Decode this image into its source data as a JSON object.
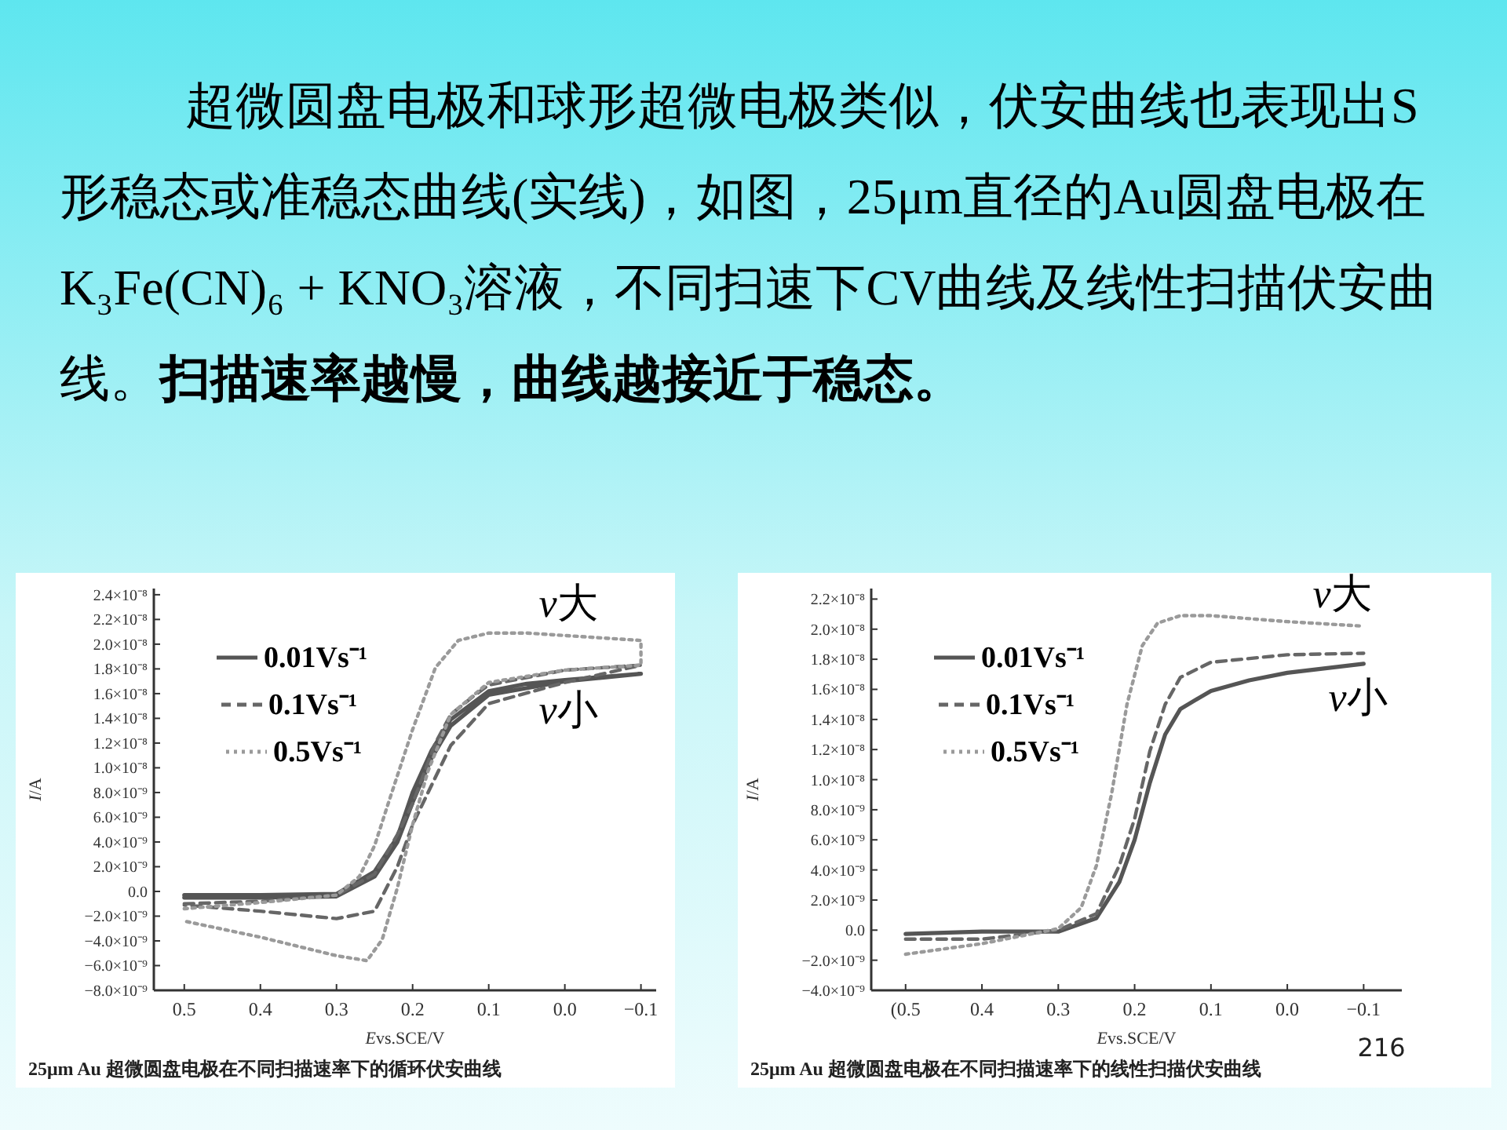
{
  "chart_data": [
    {
      "type": "line",
      "title": "超微圆盘电极和球形超微电极类似，伏安曲线也表现出S形稳态或准稳态曲线(实线)，如图，25μm直径的Au圆盘电极在K₃Fe(CN)₆ + KNO₃溶液，不同扫速下CV曲线及线性扫描伏安曲线。",
      "subtitle": "扫描速率越慢，曲线越接近于稳态。",
      "xlabel": "Evs.SCE/V",
      "ylabel": "I/A",
      "legend": "top left",
      "xlim": [
        0.54,
        -0.12
      ],
      "ylim": [
        -8e-09,
        2.45e-08
      ],
      "xticks": [
        {
          "value": 0.5,
          "label": "0.5"
        },
        {
          "value": 0.4,
          "label": "0.4"
        },
        {
          "value": 0.3,
          "label": "0.3"
        },
        {
          "value": 0.2,
          "label": "0.2"
        },
        {
          "value": 0.1,
          "label": "0.1"
        },
        {
          "value": 0.0,
          "label": "0.0"
        },
        {
          "value": -0.1,
          "label": "−0.1"
        }
      ],
      "yticks": [
        {
          "value": 2.4e-08,
          "label": "2.4×10⁻⁸"
        },
        {
          "value": 2.2e-08,
          "label": "2.2×10⁻⁸"
        },
        {
          "value": 2e-08,
          "label": "2.0×10⁻⁸"
        },
        {
          "value": 1.8e-08,
          "label": "1.8×10⁻⁸"
        },
        {
          "value": 1.6e-08,
          "label": "1.6×10⁻⁸"
        },
        {
          "value": 1.4e-08,
          "label": "1.4×10⁻⁸"
        },
        {
          "value": 1.2e-08,
          "label": "1.2×10⁻⁸"
        },
        {
          "value": 1e-08,
          "label": "1.0×10⁻⁸"
        },
        {
          "value": 8e-09,
          "label": "8.0×10⁻⁹"
        },
        {
          "value": 6e-09,
          "label": "6.0×10⁻⁹"
        },
        {
          "value": 4e-09,
          "label": "4.0×10⁻⁹"
        },
        {
          "value": 2e-09,
          "label": "2.0×10⁻⁹"
        },
        {
          "value": 0.0,
          "label": "0.0"
        },
        {
          "value": -2e-09,
          "label": "−2.0×10⁻⁹"
        },
        {
          "value": -4e-09,
          "label": "−4.0×10⁻⁹"
        },
        {
          "value": -6e-09,
          "label": "−6.0×10⁻⁹"
        },
        {
          "value": -8e-09,
          "label": "−8.0×10⁻⁹"
        }
      ],
      "series": [
        {
          "name": "0.01Vs⁻¹",
          "color": "#555555",
          "line_style": "solid",
          "x": [
            0.5,
            0.4,
            0.3,
            0.25,
            0.22,
            0.2,
            0.175,
            0.15,
            0.1,
            0.05,
            0.0,
            -0.1,
            0.0,
            0.1,
            0.15,
            0.175,
            0.2,
            0.22,
            0.25,
            0.3,
            0.4,
            0.5
          ],
          "values": [
            -3e-10,
            -3e-10,
            -2e-10,
            1.6e-09,
            4.4e-09,
            8e-09,
            1.14e-08,
            1.39e-08,
            1.62e-08,
            1.68e-08,
            1.71e-08,
            1.76e-08,
            1.7e-08,
            1.59e-08,
            1.34e-08,
            1.08e-08,
            7.2e-09,
            4e-09,
            1.2e-09,
            -4e-10,
            -5e-10,
            -5e-10
          ]
        },
        {
          "name": "0.1Vs⁻¹",
          "color": "#666666",
          "line_style": "dashed",
          "x": [
            0.5,
            0.4,
            0.3,
            0.25,
            0.22,
            0.2,
            0.17,
            0.15,
            0.12,
            0.1,
            0.0,
            -0.1,
            0.0,
            0.1,
            0.15,
            0.2,
            0.22,
            0.25,
            0.3,
            0.4,
            0.5
          ],
          "values": [
            -1e-09,
            -8e-10,
            -3e-10,
            1.4e-09,
            4.6e-09,
            7.1e-09,
            1.2e-08,
            1.43e-08,
            1.58e-08,
            1.67e-08,
            1.79e-08,
            1.83e-08,
            1.69e-08,
            1.52e-08,
            1.18e-08,
            5.4e-09,
            2e-09,
            -1.6e-09,
            -2.2e-09,
            -1.6e-09,
            -1.1e-09
          ]
        },
        {
          "name": "0.5Vs⁻¹",
          "color": "#9a9a9a",
          "line_style": "dotted",
          "x": [
            0.5,
            0.4,
            0.3,
            0.27,
            0.25,
            0.23,
            0.2,
            0.17,
            0.14,
            0.1,
            0.05,
            0.0,
            -0.1,
            -0.1,
            0.0,
            0.1,
            0.15,
            0.18,
            0.2,
            0.22,
            0.24,
            0.26,
            0.3,
            0.4,
            0.5
          ],
          "values": [
            -1.4e-09,
            -9e-10,
            -3e-10,
            1.2e-09,
            3.7e-09,
            7.5e-09,
            1.31e-08,
            1.81e-08,
            2.03e-08,
            2.09e-08,
            2.09e-08,
            2.07e-08,
            2.03e-08,
            1.83e-08,
            1.79e-08,
            1.69e-08,
            1.43e-08,
            9.7e-09,
            5.4e-09,
            3e-10,
            -3.9e-09,
            -5.6e-09,
            -5.2e-09,
            -3.7e-09,
            -2.4e-09
          ]
        }
      ],
      "annotations": [
        "v大",
        "v小",
        "25μm Au 超微圆盘电极在不同扫描速率下的循环伏安曲线"
      ]
    },
    {
      "type": "line",
      "xlabel": "Evs.SCE/V",
      "ylabel": "I/A",
      "legend": "top left",
      "xlim": [
        0.545,
        -0.15
      ],
      "ylim": [
        -4e-09,
        2.27e-08
      ],
      "xticks": [
        {
          "value": 0.5,
          "label": "(0.5"
        },
        {
          "value": 0.4,
          "label": "0.4"
        },
        {
          "value": 0.3,
          "label": "0.3"
        },
        {
          "value": 0.2,
          "label": "0.2"
        },
        {
          "value": 0.1,
          "label": "0.1"
        },
        {
          "value": 0.0,
          "label": "0.0"
        },
        {
          "value": -0.1,
          "label": "−0.1"
        }
      ],
      "yticks": [
        {
          "value": 2.2e-08,
          "label": "2.2×10⁻⁸"
        },
        {
          "value": 2e-08,
          "label": "2.0×10⁻⁸"
        },
        {
          "value": 1.8e-08,
          "label": "1.8×10⁻⁸"
        },
        {
          "value": 1.6e-08,
          "label": "1.6×10⁻⁸"
        },
        {
          "value": 1.4e-08,
          "label": "1.4×10⁻⁸"
        },
        {
          "value": 1.2e-08,
          "label": "1.2×10⁻⁸"
        },
        {
          "value": 1e-08,
          "label": "1.0×10⁻⁸"
        },
        {
          "value": 8e-09,
          "label": "8.0×10⁻⁹"
        },
        {
          "value": 6e-09,
          "label": "6.0×10⁻⁹"
        },
        {
          "value": 4e-09,
          "label": "4.0×10⁻⁹"
        },
        {
          "value": 2e-09,
          "label": "2.0×10⁻⁹"
        },
        {
          "value": 0.0,
          "label": "0.0"
        },
        {
          "value": -2e-09,
          "label": "−2.0×10⁻⁹"
        },
        {
          "value": -4e-09,
          "label": "−4.0×10⁻⁹"
        }
      ],
      "series": [
        {
          "name": "0.01Vs⁻¹",
          "color": "#555555",
          "line_style": "solid",
          "x": [
            0.5,
            0.4,
            0.3,
            0.25,
            0.22,
            0.2,
            0.18,
            0.16,
            0.14,
            0.1,
            0.05,
            0.0,
            -0.1
          ],
          "values": [
            -2.5e-10,
            -1e-10,
            -1e-10,
            8e-10,
            3.2e-09,
            6e-09,
            9.8e-09,
            1.3e-08,
            1.47e-08,
            1.59e-08,
            1.66e-08,
            1.71e-08,
            1.77e-08
          ]
        },
        {
          "name": "0.1Vs⁻¹",
          "color": "#666666",
          "line_style": "dashed",
          "x": [
            0.5,
            0.4,
            0.3,
            0.25,
            0.22,
            0.2,
            0.18,
            0.16,
            0.14,
            0.1,
            0.0,
            -0.1
          ],
          "values": [
            -6e-10,
            -6e-10,
            0.0,
            1.1e-09,
            4.3e-09,
            7.4e-09,
            1.19e-08,
            1.5e-08,
            1.68e-08,
            1.78e-08,
            1.83e-08,
            1.84e-08
          ]
        },
        {
          "name": "0.5Vs⁻¹",
          "color": "#9a9a9a",
          "line_style": "dotted",
          "x": [
            0.5,
            0.4,
            0.3,
            0.27,
            0.25,
            0.23,
            0.21,
            0.19,
            0.17,
            0.14,
            0.1,
            0.0,
            -0.1
          ],
          "values": [
            -1.6e-09,
            -9e-10,
            1e-10,
            1.5e-09,
            4.3e-09,
            9.1e-09,
            1.5e-08,
            1.89e-08,
            2.04e-08,
            2.09e-08,
            2.09e-08,
            2.05e-08,
            2.02e-08
          ]
        }
      ],
      "annotations": [
        "v大",
        "v小",
        "25μm Au 超微圆盘电极在不同扫描速率下的线性扫描伏安曲线",
        "216"
      ]
    }
  ]
}
